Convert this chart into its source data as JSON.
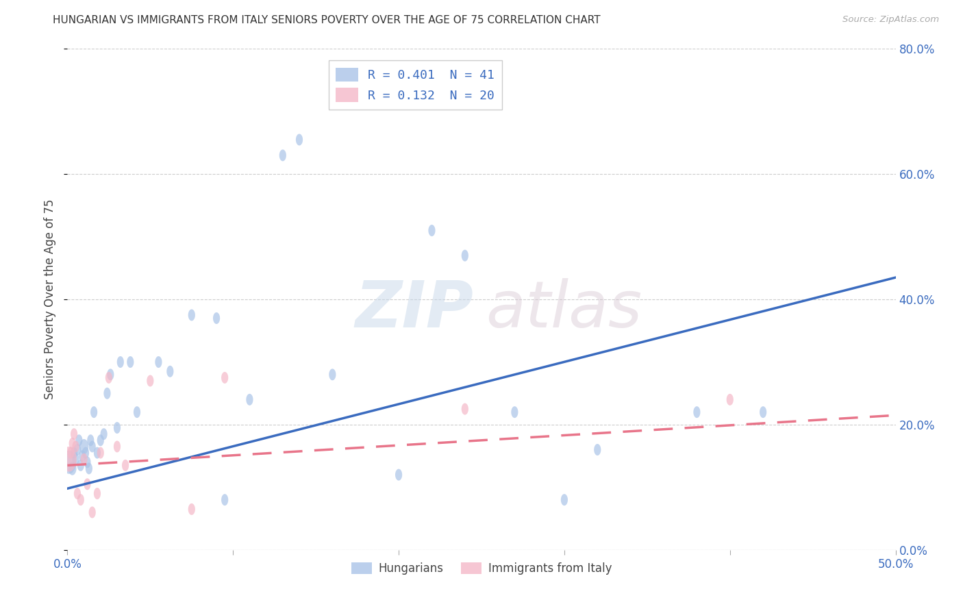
{
  "title": "HUNGARIAN VS IMMIGRANTS FROM ITALY SENIORS POVERTY OVER THE AGE OF 75 CORRELATION CHART",
  "source": "Source: ZipAtlas.com",
  "ylabel": "Seniors Poverty Over the Age of 75",
  "xlim": [
    0.0,
    0.5
  ],
  "ylim": [
    0.0,
    0.8
  ],
  "xticks": [
    0.0,
    0.1,
    0.2,
    0.3,
    0.4,
    0.5
  ],
  "xticklabels": [
    "0.0%",
    "",
    "",
    "",
    "",
    "50.0%"
  ],
  "yticks": [
    0.0,
    0.2,
    0.4,
    0.6,
    0.8
  ],
  "yticklabels": [
    "0.0%",
    "20.0%",
    "40.0%",
    "60.0%",
    "80.0%"
  ],
  "hungarian_color": "#aac4e8",
  "italian_color": "#f4b8c8",
  "hungarian_R": 0.401,
  "hungarian_N": 41,
  "italian_R": 0.132,
  "italian_N": 20,
  "trend_color_hungarian": "#3a6bbf",
  "trend_color_italian": "#e8758a",
  "watermark_zip": "ZIP",
  "watermark_atlas": "atlas",
  "hungarian_x": [
    0.001,
    0.003,
    0.004,
    0.005,
    0.006,
    0.007,
    0.008,
    0.009,
    0.01,
    0.011,
    0.012,
    0.013,
    0.014,
    0.015,
    0.016,
    0.018,
    0.02,
    0.022,
    0.024,
    0.026,
    0.03,
    0.032,
    0.038,
    0.042,
    0.055,
    0.062,
    0.075,
    0.09,
    0.095,
    0.11,
    0.13,
    0.14,
    0.16,
    0.2,
    0.22,
    0.24,
    0.27,
    0.3,
    0.32,
    0.38,
    0.42
  ],
  "hungarian_y": [
    0.14,
    0.13,
    0.155,
    0.145,
    0.16,
    0.175,
    0.135,
    0.15,
    0.165,
    0.155,
    0.14,
    0.13,
    0.175,
    0.165,
    0.22,
    0.155,
    0.175,
    0.185,
    0.25,
    0.28,
    0.195,
    0.3,
    0.3,
    0.22,
    0.3,
    0.285,
    0.375,
    0.37,
    0.08,
    0.24,
    0.63,
    0.655,
    0.28,
    0.12,
    0.51,
    0.47,
    0.22,
    0.08,
    0.16,
    0.22,
    0.22
  ],
  "hungarian_size": [
    600,
    200,
    150,
    150,
    150,
    150,
    150,
    150,
    250,
    150,
    150,
    150,
    150,
    150,
    150,
    150,
    150,
    150,
    150,
    150,
    150,
    150,
    150,
    150,
    150,
    150,
    150,
    150,
    150,
    150,
    150,
    150,
    150,
    150,
    150,
    150,
    150,
    150,
    150,
    150,
    150
  ],
  "italian_x": [
    0.001,
    0.002,
    0.003,
    0.004,
    0.005,
    0.006,
    0.008,
    0.01,
    0.012,
    0.015,
    0.018,
    0.02,
    0.025,
    0.03,
    0.035,
    0.05,
    0.075,
    0.095,
    0.24,
    0.4
  ],
  "italian_y": [
    0.145,
    0.155,
    0.17,
    0.185,
    0.165,
    0.09,
    0.08,
    0.145,
    0.105,
    0.06,
    0.09,
    0.155,
    0.275,
    0.165,
    0.135,
    0.27,
    0.065,
    0.275,
    0.225,
    0.24
  ],
  "italian_size": [
    700,
    150,
    150,
    150,
    150,
    150,
    150,
    150,
    150,
    150,
    150,
    150,
    150,
    150,
    150,
    150,
    150,
    150,
    150,
    150
  ],
  "trend_hu_x0": 0.0,
  "trend_hu_y0": 0.098,
  "trend_hu_x1": 0.5,
  "trend_hu_y1": 0.435,
  "trend_it_x0": 0.0,
  "trend_it_y0": 0.135,
  "trend_it_x1": 0.5,
  "trend_it_y1": 0.215
}
